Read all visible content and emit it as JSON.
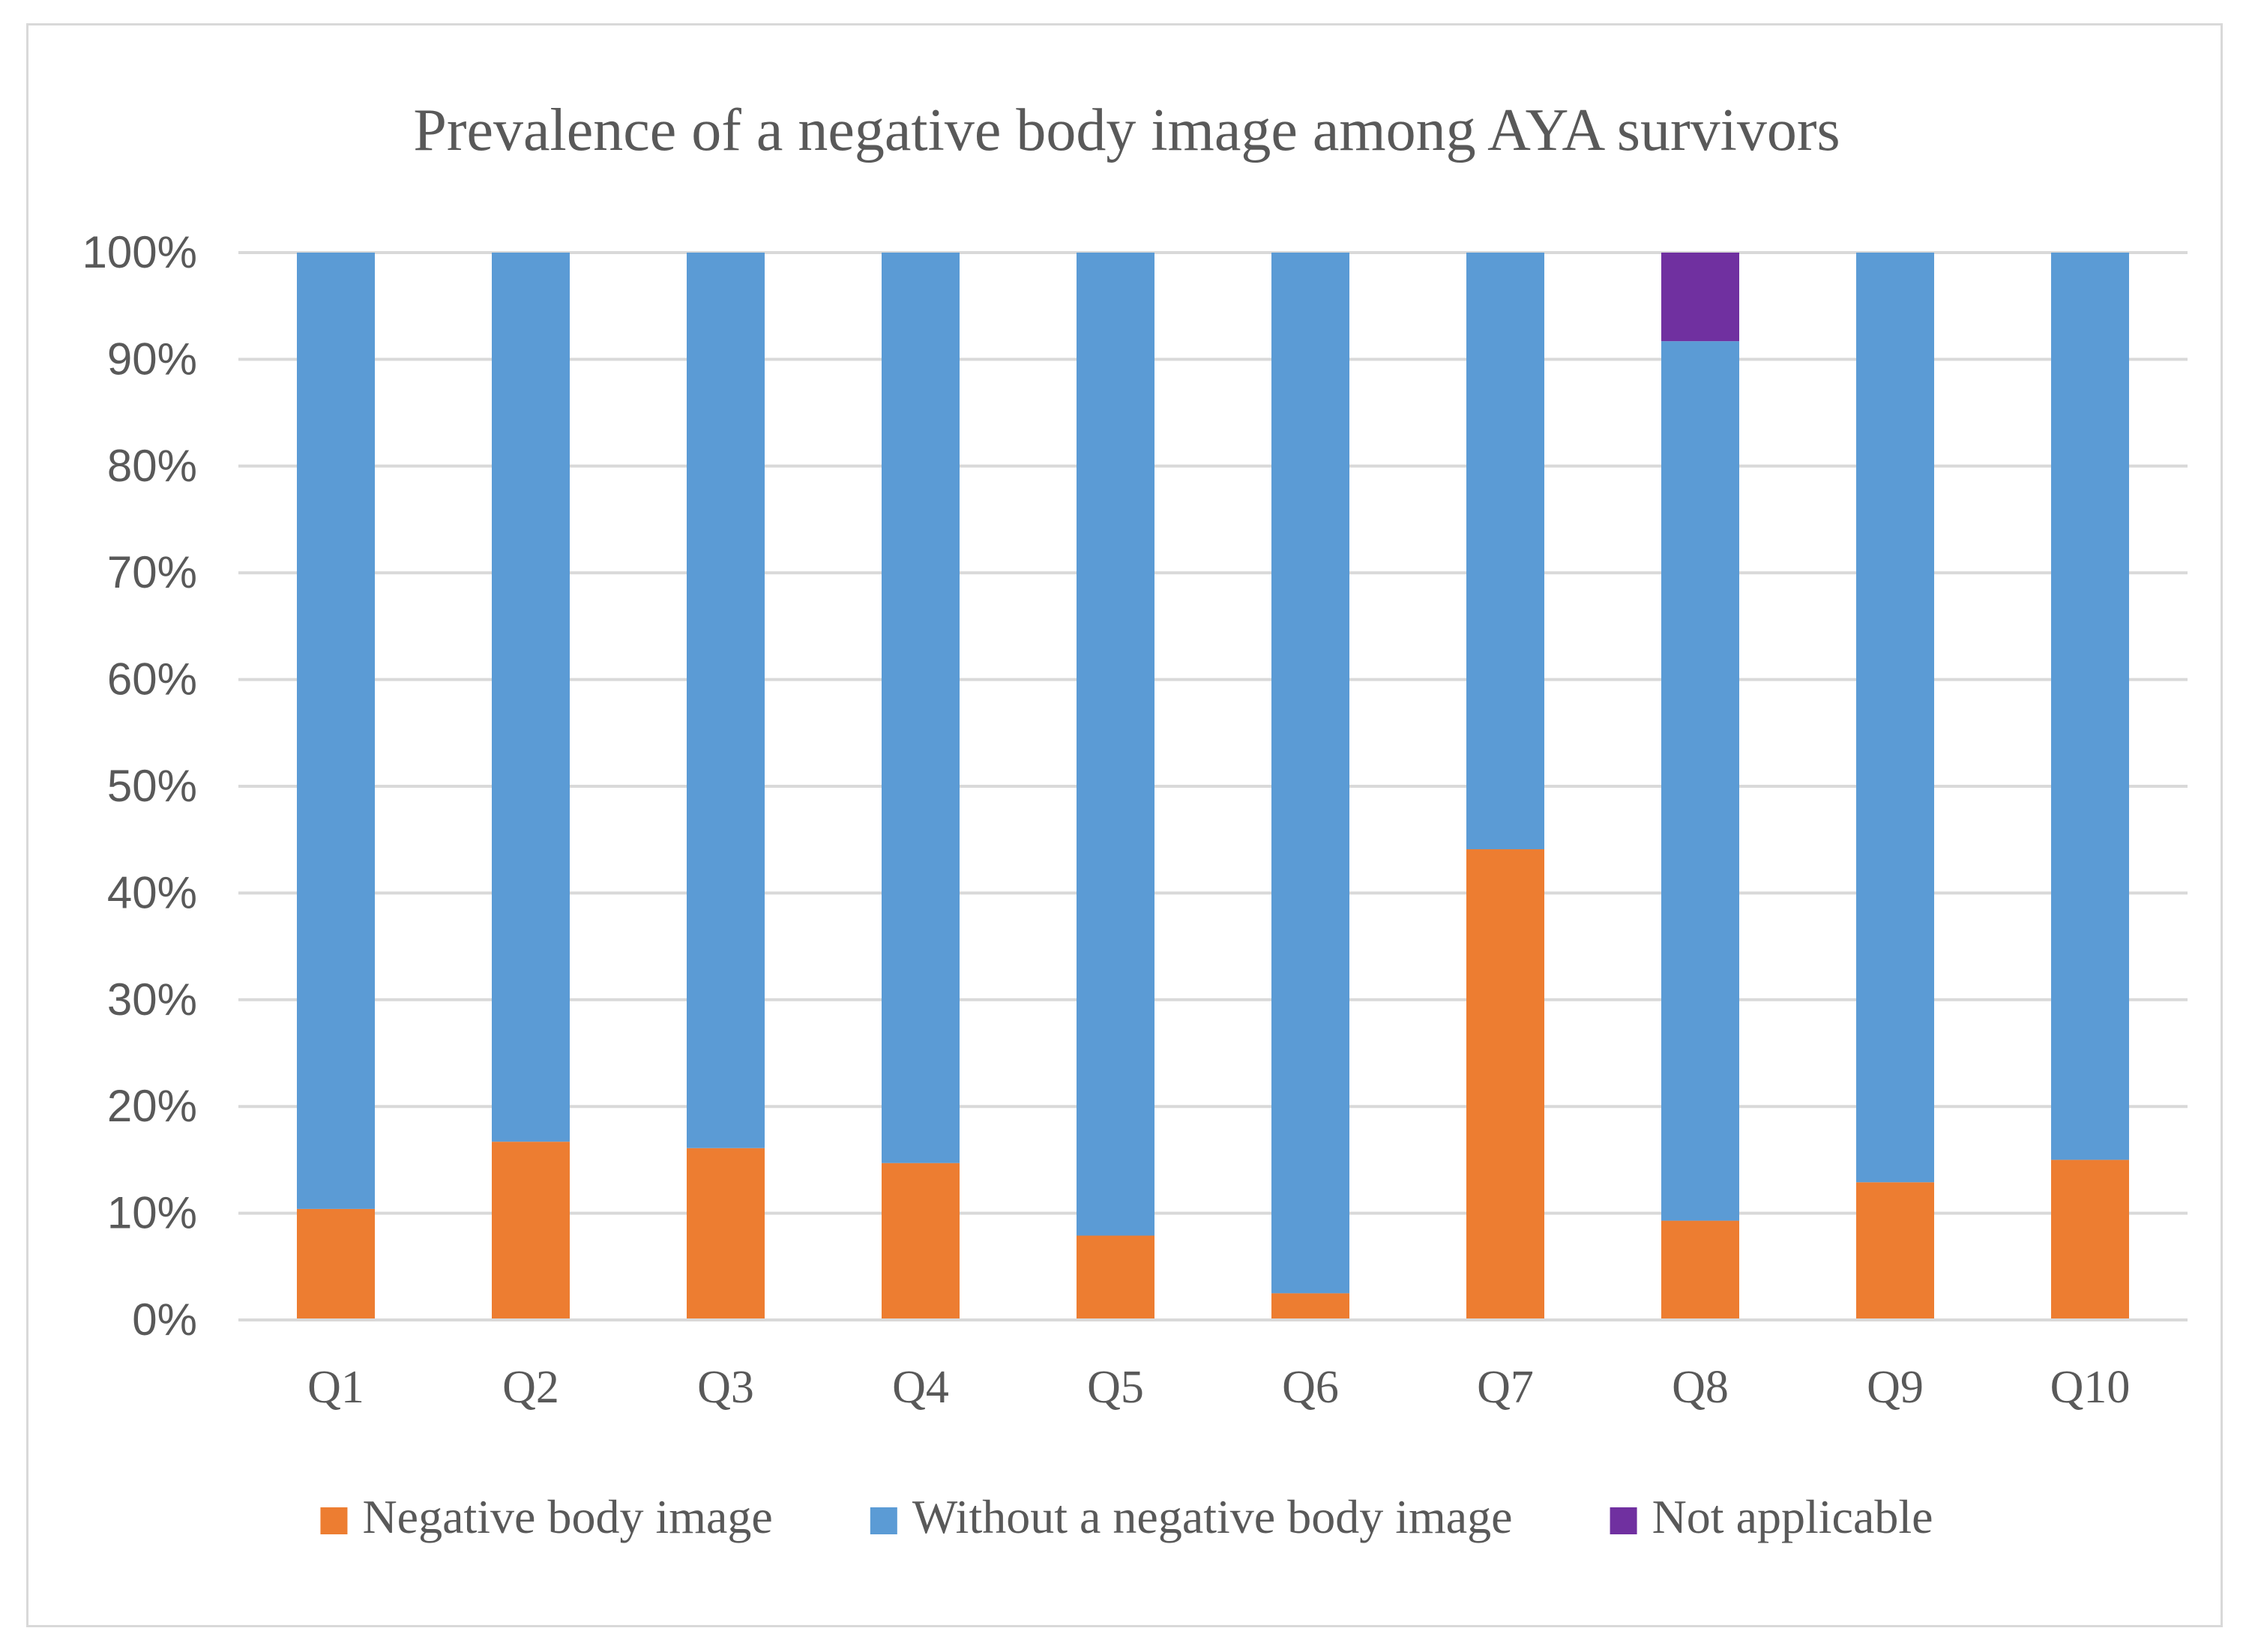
{
  "chart_data": {
    "type": "bar",
    "stacked": true,
    "title": "Prevalence of a negative body image among AYA survivors",
    "categories": [
      "Q1",
      "Q2",
      "Q3",
      "Q4",
      "Q5",
      "Q6",
      "Q7",
      "Q8",
      "Q9",
      "Q10"
    ],
    "series": [
      {
        "name": "Negative body image",
        "color": "#ED7D31",
        "values": [
          10.4,
          16.7,
          16.1,
          14.7,
          7.9,
          2.5,
          44.1,
          9.3,
          12.9,
          15.0
        ]
      },
      {
        "name": "Without a negative body image",
        "color": "#5B9BD5",
        "values": [
          89.6,
          83.3,
          83.9,
          85.3,
          92.1,
          97.5,
          55.9,
          82.4,
          87.1,
          85.0
        ]
      },
      {
        "name": "Not applicable",
        "color": "#7030A0",
        "values": [
          0,
          0,
          0,
          0,
          0,
          0,
          0,
          8.3,
          0,
          0
        ]
      }
    ],
    "ylim": [
      0,
      100
    ],
    "yticks": [
      0,
      10,
      20,
      30,
      40,
      50,
      60,
      70,
      80,
      90,
      100
    ],
    "ytick_labels": [
      "0%",
      "10%",
      "20%",
      "30%",
      "40%",
      "50%",
      "60%",
      "70%",
      "80%",
      "90%",
      "100%"
    ],
    "xlabel": "",
    "ylabel": "",
    "grid": true,
    "legend_position": "bottom"
  }
}
